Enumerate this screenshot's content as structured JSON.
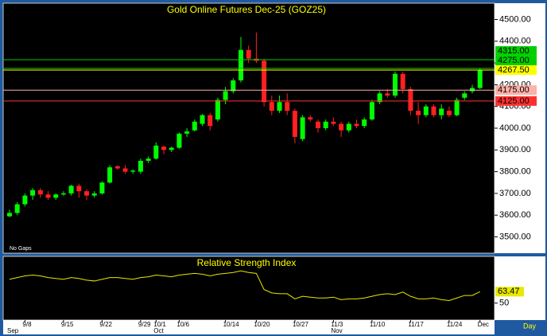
{
  "chart_data": [
    {
      "type": "candlestick",
      "title": "Gold Online Futures Dec-25 (GOZ25)",
      "note": "No Gaps",
      "x_label": "Day",
      "categories": [
        null,
        null,
        "9/8",
        null,
        null,
        null,
        null,
        "9/15",
        null,
        null,
        null,
        null,
        "9/22",
        null,
        null,
        null,
        null,
        "9/29",
        null,
        "10/1",
        null,
        null,
        "10/6",
        null,
        null,
        null,
        null,
        null,
        "10/14",
        null,
        null,
        null,
        "10/20",
        null,
        null,
        null,
        null,
        "10/27",
        null,
        null,
        null,
        null,
        "11/3",
        null,
        null,
        null,
        null,
        "11/10",
        null,
        null,
        null,
        null,
        "11/17",
        null,
        null,
        null,
        null,
        "11/24",
        null,
        null,
        null,
        "Dec"
      ],
      "months": [
        "Sep",
        null,
        null,
        null,
        null,
        null,
        null,
        null,
        null,
        null,
        null,
        null,
        null,
        null,
        null,
        null,
        null,
        null,
        null,
        "Oct",
        null,
        null,
        null,
        null,
        null,
        null,
        null,
        null,
        null,
        null,
        null,
        null,
        null,
        null,
        null,
        null,
        null,
        null,
        null,
        null,
        null,
        null,
        "Nov",
        null,
        null,
        null,
        null,
        null,
        null,
        null,
        null,
        null,
        null,
        null,
        null,
        null,
        null,
        null,
        null,
        null,
        null,
        null
      ],
      "open": [
        3595,
        3610,
        3650,
        3690,
        3715,
        3695,
        3680,
        3695,
        3700,
        3735,
        3710,
        3690,
        3700,
        3750,
        3825,
        3815,
        3800,
        3800,
        3850,
        3860,
        3915,
        3900,
        3910,
        3975,
        3990,
        4020,
        4060,
        4040,
        4130,
        4170,
        4220,
        4360,
        4320,
        4310,
        4120,
        4080,
        4120,
        4080,
        3950,
        4050,
        4030,
        4000,
        4030,
        4020,
        3990,
        4020,
        4010,
        4040,
        4120,
        4160,
        4150,
        4250,
        4180,
        4080,
        4060,
        4100,
        4060,
        4080,
        4060,
        4140,
        4170,
        4185
      ],
      "high": [
        3625,
        3660,
        3700,
        3725,
        3725,
        3710,
        3700,
        3710,
        3740,
        3745,
        3720,
        3710,
        3755,
        3830,
        3830,
        3830,
        3810,
        3860,
        3870,
        3935,
        3920,
        3915,
        3980,
        4000,
        4040,
        4065,
        4070,
        4140,
        4190,
        4230,
        4420,
        4380,
        4440,
        4320,
        4150,
        4150,
        4160,
        4090,
        4060,
        4060,
        4040,
        4040,
        4050,
        4030,
        4030,
        4040,
        4050,
        4130,
        4170,
        4180,
        4260,
        4260,
        4190,
        4120,
        4110,
        4110,
        4110,
        4100,
        4140,
        4170,
        4200,
        4275
      ],
      "low": [
        3590,
        3600,
        3640,
        3670,
        3680,
        3670,
        3670,
        3690,
        3690,
        3680,
        3670,
        3680,
        3695,
        3745,
        3810,
        3790,
        3790,
        3790,
        3840,
        3855,
        3880,
        3890,
        3905,
        3960,
        3985,
        4010,
        3990,
        4030,
        4110,
        4160,
        4210,
        4300,
        4300,
        4100,
        4060,
        4070,
        4060,
        3930,
        3940,
        4030,
        3980,
        3990,
        4010,
        3960,
        3980,
        4000,
        4000,
        4035,
        4110,
        4140,
        4140,
        4160,
        4060,
        4020,
        4050,
        4050,
        4040,
        4050,
        4055,
        4130,
        4160,
        4180
      ],
      "close": [
        3610,
        3650,
        3690,
        3715,
        3695,
        3680,
        3695,
        3700,
        3735,
        3710,
        3690,
        3700,
        3750,
        3820,
        3815,
        3800,
        3805,
        3850,
        3860,
        3920,
        3900,
        3910,
        3975,
        3985,
        4030,
        4060,
        4010,
        4130,
        4170,
        4220,
        4360,
        4320,
        4310,
        4120,
        4080,
        4120,
        4080,
        3960,
        4050,
        4040,
        4000,
        4030,
        4020,
        3990,
        4020,
        4010,
        4040,
        4120,
        4160,
        4150,
        4250,
        4180,
        4080,
        4060,
        4100,
        4060,
        4090,
        4060,
        4130,
        4160,
        4185,
        4267.5
      ],
      "up_color": "#00ff00",
      "down_color": "#ff2020",
      "ylim": [
        3425,
        4575
      ],
      "yticks": [
        {
          "value": 3500,
          "label": "3500.00"
        },
        {
          "value": 3600,
          "label": "3600.00"
        },
        {
          "value": 3700,
          "label": "3700.00"
        },
        {
          "value": 3800,
          "label": "3800.00"
        },
        {
          "value": 3900,
          "label": "3900.00"
        },
        {
          "value": 4000,
          "label": "4000.00"
        },
        {
          "value": 4100,
          "label": "4100.00"
        },
        {
          "value": 4200,
          "label": "4200.00"
        },
        {
          "value": 4300,
          "label": "4300.00"
        },
        {
          "value": 4400,
          "label": "4400.00"
        },
        {
          "value": 4500,
          "label": "4500.00"
        }
      ],
      "levels": [
        {
          "value": 4315,
          "label": "4315.00",
          "color": "#00d000"
        },
        {
          "value": 4275,
          "label": "4275.00",
          "color": "#00d000"
        },
        {
          "value": 4267.5,
          "label": "4267.50",
          "color": "#ffff00"
        },
        {
          "value": 4175,
          "label": "4175.00",
          "color": "#ffb0a8"
        },
        {
          "value": 4125,
          "label": "4125.00",
          "color": "#ff3030"
        }
      ]
    },
    {
      "type": "line",
      "title": "Relative Strength Index",
      "values": [
        78,
        80,
        82,
        83,
        82,
        80,
        79,
        78,
        80,
        79,
        77,
        76,
        78,
        80,
        80,
        79,
        78,
        80,
        81,
        83,
        82,
        81,
        83,
        84,
        85,
        84,
        82,
        84,
        85,
        86,
        88,
        86,
        85,
        66,
        62,
        61,
        61,
        55,
        58,
        57,
        56,
        56,
        57,
        54,
        55,
        55,
        56,
        58,
        60,
        61,
        60,
        63,
        58,
        55,
        55,
        56,
        54,
        53,
        56,
        59,
        59,
        63.47
      ],
      "color": "#e8e800",
      "ylim": [
        30,
        105
      ],
      "yticks": [
        50
      ]
    }
  ]
}
